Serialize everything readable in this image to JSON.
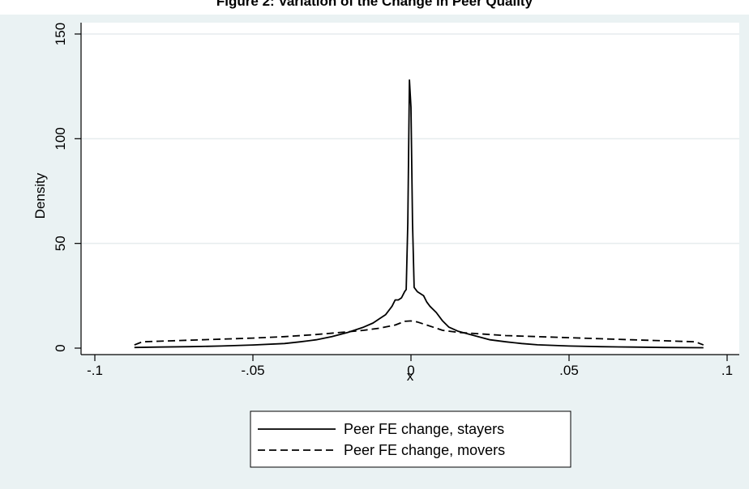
{
  "figure_title": "Figure 2: Variation of the Change in Peer Quality",
  "chart_data": {
    "type": "line",
    "title": "Figure 2: Variation of the Change in Peer Quality",
    "xlabel": "x",
    "ylabel": "Density",
    "xlim": [
      -0.1,
      0.1
    ],
    "ylim": [
      0,
      150
    ],
    "x_ticks": [
      -0.1,
      -0.05,
      0,
      0.05,
      0.1
    ],
    "x_tick_labels": [
      "-.1",
      "-.05",
      "0",
      ".05",
      ".1"
    ],
    "y_ticks": [
      0,
      50,
      100,
      150
    ],
    "y_tick_labels": [
      "0",
      "50",
      "100",
      "150"
    ],
    "grid": "horizontal",
    "legend_position": "bottom",
    "series": [
      {
        "name": "Peer FE change, stayers",
        "line_style": "solid",
        "color": "#000000",
        "x": [
          -0.0875,
          -0.08,
          -0.07,
          -0.06,
          -0.05,
          -0.04,
          -0.035,
          -0.03,
          -0.025,
          -0.02,
          -0.015,
          -0.012,
          -0.01,
          -0.008,
          -0.006,
          -0.005,
          -0.004,
          -0.003,
          -0.002,
          -0.0015,
          -0.001,
          -0.0005,
          0,
          0.0005,
          0.001,
          0.002,
          0.003,
          0.004,
          0.005,
          0.006,
          0.008,
          0.01,
          0.012,
          0.015,
          0.02,
          0.025,
          0.03,
          0.035,
          0.04,
          0.05,
          0.06,
          0.07,
          0.08,
          0.0925
        ],
        "y": [
          0.3,
          0.5,
          0.7,
          1,
          1.5,
          2.2,
          3,
          4,
          5.5,
          7.5,
          10,
          12,
          14,
          16,
          20,
          23,
          23,
          24,
          27,
          28,
          60,
          128,
          115,
          60,
          29,
          27,
          26,
          25,
          22,
          20,
          17,
          13,
          10,
          8,
          6,
          4,
          3,
          2.2,
          1.6,
          1,
          0.7,
          0.5,
          0.3,
          0.2
        ]
      },
      {
        "name": "Peer FE change, movers",
        "line_style": "dashed",
        "color": "#000000",
        "x": [
          -0.0875,
          -0.085,
          -0.08,
          -0.07,
          -0.06,
          -0.05,
          -0.04,
          -0.03,
          -0.02,
          -0.015,
          -0.01,
          -0.005,
          -0.002,
          0,
          0.002,
          0.005,
          0.01,
          0.015,
          0.02,
          0.03,
          0.04,
          0.05,
          0.06,
          0.07,
          0.08,
          0.09,
          0.0925
        ],
        "y": [
          1.5,
          3,
          3.3,
          3.8,
          4.3,
          4.8,
          5.5,
          6.5,
          7.8,
          8.5,
          9.5,
          11,
          12.8,
          13,
          12.5,
          11,
          8.5,
          7.5,
          7,
          6,
          5.5,
          5,
          4.5,
          4,
          3.5,
          3,
          1.5
        ]
      }
    ]
  }
}
